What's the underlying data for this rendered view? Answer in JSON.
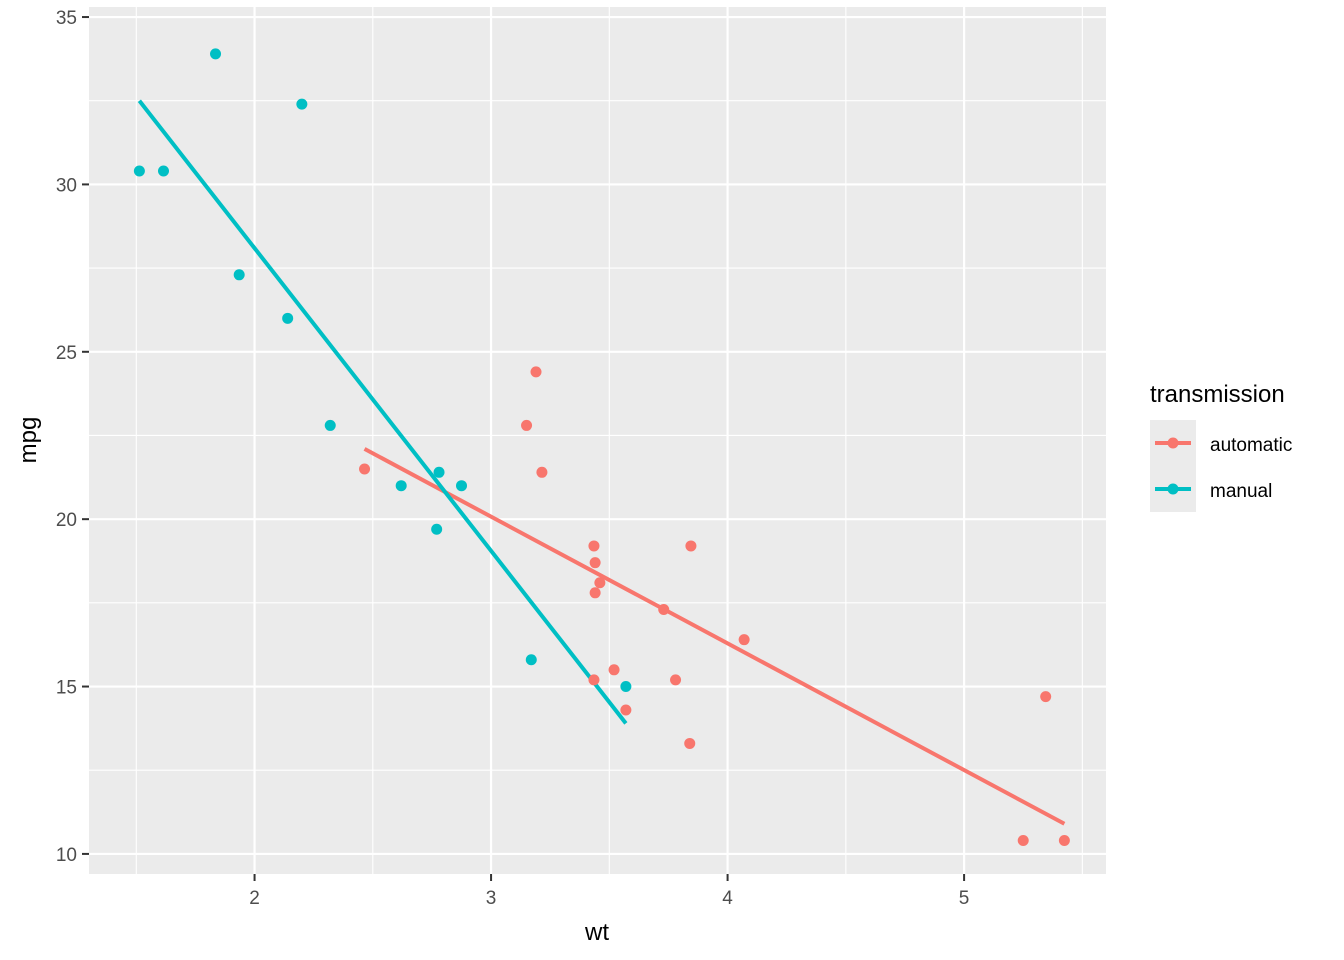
{
  "chart_data": {
    "type": "scatter",
    "title": "",
    "xlabel": "wt",
    "ylabel": "mpg",
    "xlim": [
      1.3,
      5.6
    ],
    "ylim": [
      9.4,
      35.3
    ],
    "x_ticks": [
      2,
      3,
      4,
      5
    ],
    "y_ticks": [
      10,
      15,
      20,
      25,
      30,
      35
    ],
    "grid": true,
    "legend": {
      "title": "transmission",
      "position": "right"
    },
    "series": [
      {
        "name": "automatic",
        "color": "#F8766D",
        "points": [
          [
            2.465,
            21.5
          ],
          [
            3.15,
            22.8
          ],
          [
            3.19,
            24.4
          ],
          [
            3.215,
            21.4
          ],
          [
            3.435,
            19.2
          ],
          [
            3.44,
            18.7
          ],
          [
            3.46,
            18.1
          ],
          [
            3.44,
            17.8
          ],
          [
            3.73,
            17.3
          ],
          [
            3.845,
            19.2
          ],
          [
            4.07,
            16.4
          ],
          [
            3.435,
            15.2
          ],
          [
            3.52,
            15.5
          ],
          [
            3.57,
            14.3
          ],
          [
            3.78,
            15.2
          ],
          [
            3.84,
            13.3
          ],
          [
            5.345,
            14.7
          ],
          [
            5.25,
            10.4
          ],
          [
            5.424,
            10.4
          ]
        ],
        "fit": [
          [
            2.465,
            22.1
          ],
          [
            5.424,
            10.9
          ]
        ]
      },
      {
        "name": "manual",
        "color": "#00BFC4",
        "points": [
          [
            1.513,
            30.4
          ],
          [
            1.615,
            30.4
          ],
          [
            1.835,
            33.9
          ],
          [
            2.2,
            32.4
          ],
          [
            1.935,
            27.3
          ],
          [
            2.14,
            26.0
          ],
          [
            2.32,
            22.8
          ],
          [
            2.62,
            21.0
          ],
          [
            2.77,
            19.7
          ],
          [
            2.78,
            21.4
          ],
          [
            2.875,
            21.0
          ],
          [
            3.17,
            15.8
          ],
          [
            3.57,
            15.0
          ]
        ],
        "fit": [
          [
            1.513,
            32.5
          ],
          [
            3.57,
            13.9
          ]
        ]
      }
    ]
  }
}
